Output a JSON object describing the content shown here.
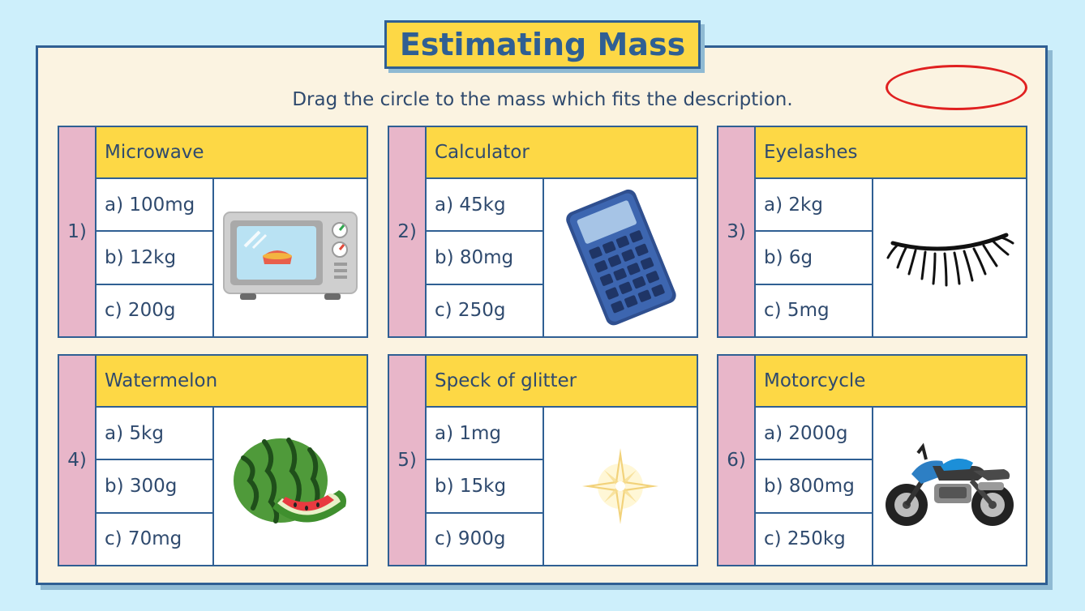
{
  "title": "Estimating Mass",
  "instruction": "Drag the circle to the mass which fits the description.",
  "questions": [
    {
      "number": "1)",
      "name": "Microwave",
      "options": [
        "a) 100mg",
        "b) 12kg",
        "c) 200g"
      ],
      "icon": "microwave-icon"
    },
    {
      "number": "2)",
      "name": "Calculator",
      "options": [
        "a) 45kg",
        "b) 80mg",
        "c) 250g"
      ],
      "icon": "calculator-icon"
    },
    {
      "number": "3)",
      "name": "Eyelashes",
      "options": [
        "a) 2kg",
        "b) 6g",
        "c) 5mg"
      ],
      "icon": "eyelashes-icon"
    },
    {
      "number": "4)",
      "name": "Watermelon",
      "options": [
        "a) 5kg",
        "b) 300g",
        "c) 70mg"
      ],
      "icon": "watermelon-icon"
    },
    {
      "number": "5)",
      "name": "Speck of glitter",
      "options": [
        "a) 1mg",
        "b) 15kg",
        "c) 900g"
      ],
      "icon": "glitter-icon"
    },
    {
      "number": "6)",
      "name": "Motorcycle",
      "options": [
        "a) 2000g",
        "b) 800mg",
        "c) 250kg"
      ],
      "icon": "motorcycle-icon"
    }
  ],
  "colors": {
    "background": "#cdeffb",
    "board": "#fbf3e1",
    "border": "#2f5f93",
    "header_yellow": "#fdd845",
    "number_pink": "#e8b6c9",
    "drag_circle": "#e02020"
  }
}
